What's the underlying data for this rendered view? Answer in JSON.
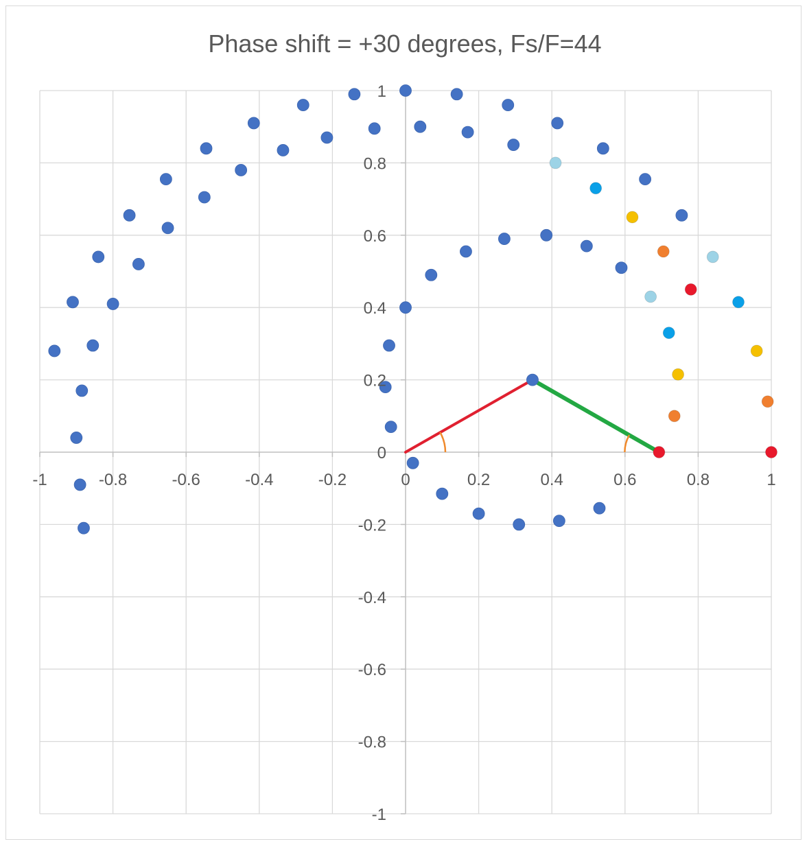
{
  "chart_data": {
    "type": "scatter",
    "title": "Phase shift = +30 degrees, Fs/F=44",
    "xlabel": "",
    "ylabel": "",
    "xlim": [
      -1,
      1
    ],
    "ylim": [
      -1,
      1
    ],
    "x_ticks": [
      -1,
      -0.8,
      -0.6,
      -0.4,
      -0.2,
      0,
      0.2,
      0.4,
      0.6,
      0.8,
      1
    ],
    "y_ticks": [
      -1,
      -0.8,
      -0.6,
      -0.4,
      -0.2,
      0,
      0.2,
      0.4,
      0.6,
      0.8,
      1
    ],
    "x_tick_labels": [
      "-1",
      "-0.8",
      "-0.6",
      "-0.4",
      "-0.2",
      "0",
      "0.2",
      "0.4",
      "0.6",
      "0.8",
      "1"
    ],
    "y_tick_labels": [
      "-1",
      "-0.8",
      "-0.6",
      "-0.4",
      "-0.2",
      "0",
      "0.2",
      "0.4",
      "0.6",
      "0.8",
      "1"
    ],
    "grid": true,
    "legend": "none",
    "colors": {
      "main": "#4472c4",
      "light_blue": "#9dd3e6",
      "cyan": "#0aa0e8",
      "yellow": "#f5c000",
      "orange": "#f07f2f",
      "red": "#e8192c",
      "red_line": "#e02030",
      "green_line": "#23a843",
      "arc": "#f08a2c",
      "grid": "#d9d9d9",
      "axis": "#bfbfbf",
      "text": "#595959"
    },
    "points": [
      {
        "x": -0.96,
        "y": 0.28,
        "c": "main"
      },
      {
        "x": -0.91,
        "y": 0.415,
        "c": "main"
      },
      {
        "x": -0.84,
        "y": 0.54,
        "c": "main"
      },
      {
        "x": -0.755,
        "y": 0.655,
        "c": "main"
      },
      {
        "x": -0.655,
        "y": 0.755,
        "c": "main"
      },
      {
        "x": -0.545,
        "y": 0.84,
        "c": "main"
      },
      {
        "x": -0.415,
        "y": 0.91,
        "c": "main"
      },
      {
        "x": -0.28,
        "y": 0.96,
        "c": "main"
      },
      {
        "x": -0.14,
        "y": 0.99,
        "c": "main"
      },
      {
        "x": 0.0,
        "y": 1.0,
        "c": "main"
      },
      {
        "x": 0.14,
        "y": 0.99,
        "c": "main"
      },
      {
        "x": 0.28,
        "y": 0.96,
        "c": "main"
      },
      {
        "x": 0.415,
        "y": 0.91,
        "c": "main"
      },
      {
        "x": 0.54,
        "y": 0.84,
        "c": "main"
      },
      {
        "x": 0.655,
        "y": 0.755,
        "c": "main"
      },
      {
        "x": 0.755,
        "y": 0.655,
        "c": "main"
      },
      {
        "x": 0.84,
        "y": 0.54,
        "c": "light_blue"
      },
      {
        "x": 0.91,
        "y": 0.415,
        "c": "cyan"
      },
      {
        "x": 0.96,
        "y": 0.28,
        "c": "yellow"
      },
      {
        "x": 0.99,
        "y": 0.14,
        "c": "orange"
      },
      {
        "x": 1.0,
        "y": 0.0,
        "c": "red"
      },
      {
        "x": -0.89,
        "y": -0.09,
        "c": "main"
      },
      {
        "x": -0.88,
        "y": -0.21,
        "c": "main"
      },
      {
        "x": -0.9,
        "y": 0.04,
        "c": "main"
      },
      {
        "x": -0.885,
        "y": 0.17,
        "c": "main"
      },
      {
        "x": -0.855,
        "y": 0.295,
        "c": "main"
      },
      {
        "x": -0.8,
        "y": 0.41,
        "c": "main"
      },
      {
        "x": -0.73,
        "y": 0.52,
        "c": "main"
      },
      {
        "x": -0.65,
        "y": 0.62,
        "c": "main"
      },
      {
        "x": -0.55,
        "y": 0.705,
        "c": "main"
      },
      {
        "x": -0.45,
        "y": 0.78,
        "c": "main"
      },
      {
        "x": -0.335,
        "y": 0.835,
        "c": "main"
      },
      {
        "x": -0.215,
        "y": 0.87,
        "c": "main"
      },
      {
        "x": -0.085,
        "y": 0.895,
        "c": "main"
      },
      {
        "x": 0.04,
        "y": 0.9,
        "c": "main"
      },
      {
        "x": 0.17,
        "y": 0.885,
        "c": "main"
      },
      {
        "x": 0.295,
        "y": 0.85,
        "c": "main"
      },
      {
        "x": 0.41,
        "y": 0.8,
        "c": "light_blue"
      },
      {
        "x": 0.52,
        "y": 0.73,
        "c": "cyan"
      },
      {
        "x": 0.62,
        "y": 0.65,
        "c": "yellow"
      },
      {
        "x": 0.705,
        "y": 0.555,
        "c": "orange"
      },
      {
        "x": 0.78,
        "y": 0.45,
        "c": "red"
      },
      {
        "x": 0.02,
        "y": -0.03,
        "c": "main"
      },
      {
        "x": 0.1,
        "y": -0.115,
        "c": "main"
      },
      {
        "x": 0.2,
        "y": -0.17,
        "c": "main"
      },
      {
        "x": 0.31,
        "y": -0.2,
        "c": "main"
      },
      {
        "x": 0.42,
        "y": -0.19,
        "c": "main"
      },
      {
        "x": 0.53,
        "y": -0.155,
        "c": "main"
      },
      {
        "x": -0.04,
        "y": 0.07,
        "c": "main"
      },
      {
        "x": -0.055,
        "y": 0.18,
        "c": "main"
      },
      {
        "x": -0.045,
        "y": 0.295,
        "c": "main"
      },
      {
        "x": 0.0,
        "y": 0.4,
        "c": "main"
      },
      {
        "x": 0.07,
        "y": 0.49,
        "c": "main"
      },
      {
        "x": 0.165,
        "y": 0.555,
        "c": "main"
      },
      {
        "x": 0.27,
        "y": 0.59,
        "c": "main"
      },
      {
        "x": 0.385,
        "y": 0.6,
        "c": "main"
      },
      {
        "x": 0.495,
        "y": 0.57,
        "c": "main"
      },
      {
        "x": 0.59,
        "y": 0.51,
        "c": "main"
      },
      {
        "x": 0.67,
        "y": 0.43,
        "c": "light_blue"
      },
      {
        "x": 0.72,
        "y": 0.33,
        "c": "cyan"
      },
      {
        "x": 0.745,
        "y": 0.215,
        "c": "yellow"
      },
      {
        "x": 0.735,
        "y": 0.1,
        "c": "orange"
      },
      {
        "x": 0.693,
        "y": 0.0,
        "c": "red"
      },
      {
        "x": 0.347,
        "y": 0.2,
        "c": "main"
      }
    ],
    "segments": [
      {
        "x1": 0,
        "y1": 0,
        "x2": 0.347,
        "y2": 0.2,
        "c": "red_line"
      },
      {
        "x1": 0.347,
        "y1": 0.2,
        "x2": 0.693,
        "y2": 0.0,
        "c": "green_line"
      }
    ]
  }
}
